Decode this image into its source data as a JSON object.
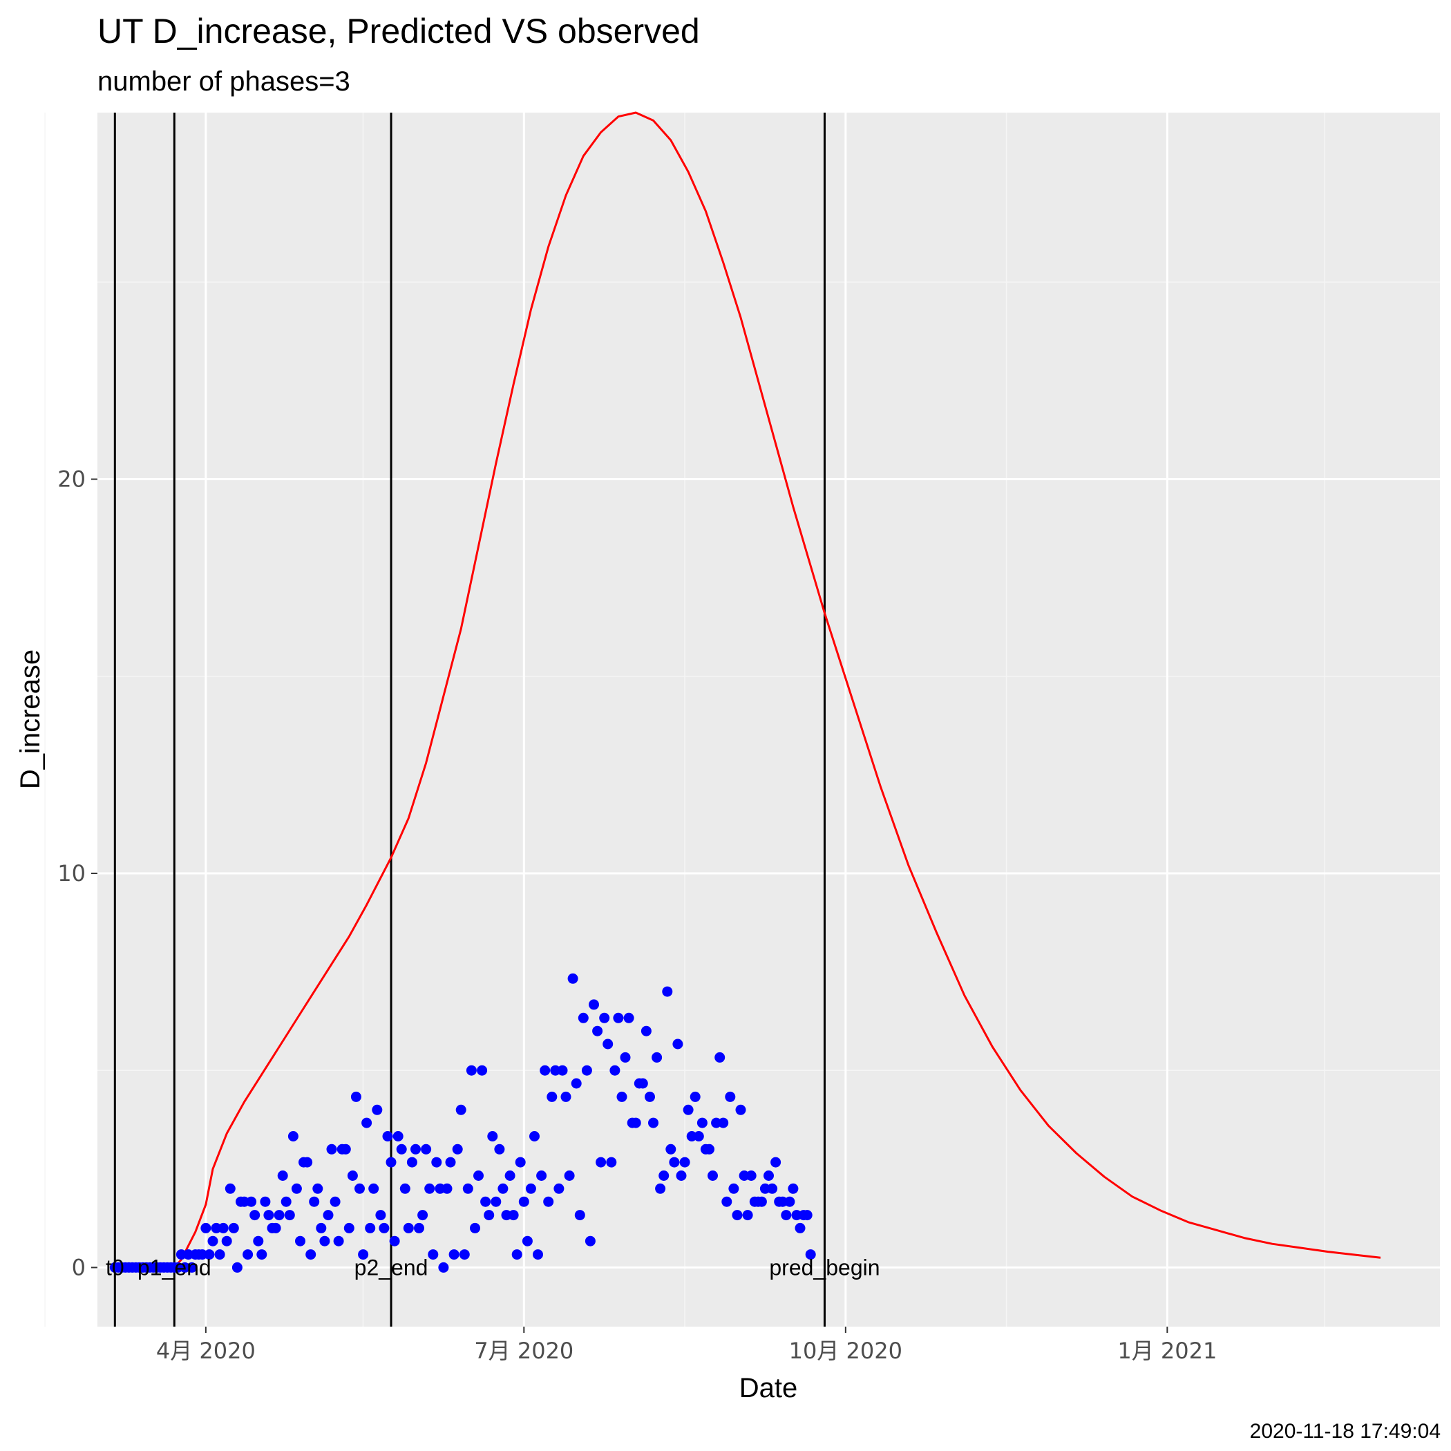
{
  "chart_data": {
    "type": "line",
    "title": "UT D_increase, Predicted VS observed",
    "subtitle": "number of phases=3",
    "xlabel": "Date",
    "ylabel": "D_increase",
    "timestamp": "2020-11-18 17:49:04",
    "xlim": [
      "2020-03-01",
      "2021-03-20"
    ],
    "ylim": [
      -1.5,
      29.3
    ],
    "grid": true,
    "x_ticks": [
      {
        "date": "2020-04-01",
        "label": "4月 2020"
      },
      {
        "date": "2020-07-01",
        "label": "7月 2020"
      },
      {
        "date": "2020-10-01",
        "label": "10月 2020"
      },
      {
        "date": "2021-01-01",
        "label": "1月 2021"
      }
    ],
    "x_minor_ticks": [
      "2020-02-15",
      "2020-05-16",
      "2020-08-16",
      "2020-11-16",
      "2021-02-15"
    ],
    "y_ticks": [
      {
        "value": 0,
        "label": "0"
      },
      {
        "value": 10,
        "label": "10"
      },
      {
        "value": 20,
        "label": "20"
      }
    ],
    "y_minor_ticks": [
      5,
      15,
      25
    ],
    "vertical_lines": [
      {
        "date": "2020-03-06",
        "label": "t0"
      },
      {
        "date": "2020-03-23",
        "label": "p1_end"
      },
      {
        "date": "2020-05-24",
        "label": "p2_end"
      },
      {
        "date": "2020-09-25",
        "label": "pred_begin"
      }
    ],
    "series": [
      {
        "kind": "line",
        "color": "#ff0000",
        "points": [
          [
            "2020-03-23",
            0
          ],
          [
            "2020-03-25",
            0.2
          ],
          [
            "2020-03-29",
            0.9
          ],
          [
            "2020-04-01",
            1.6
          ],
          [
            "2020-04-03",
            2.5
          ],
          [
            "2020-04-07",
            3.4
          ],
          [
            "2020-04-12",
            4.2
          ],
          [
            "2020-04-17",
            4.9
          ],
          [
            "2020-04-22",
            5.6
          ],
          [
            "2020-04-27",
            6.3
          ],
          [
            "2020-05-02",
            7.0
          ],
          [
            "2020-05-07",
            7.7
          ],
          [
            "2020-05-12",
            8.4
          ],
          [
            "2020-05-17",
            9.2
          ],
          [
            "2020-05-24",
            10.4
          ],
          [
            "2020-05-29",
            11.4
          ],
          [
            "2020-06-03",
            12.8
          ],
          [
            "2020-06-08",
            14.5
          ],
          [
            "2020-06-13",
            16.2
          ],
          [
            "2020-06-18",
            18.3
          ],
          [
            "2020-06-23",
            20.4
          ],
          [
            "2020-06-28",
            22.4
          ],
          [
            "2020-07-03",
            24.3
          ],
          [
            "2020-07-08",
            25.9
          ],
          [
            "2020-07-13",
            27.2
          ],
          [
            "2020-07-18",
            28.2
          ],
          [
            "2020-07-23",
            28.8
          ],
          [
            "2020-07-28",
            29.2
          ],
          [
            "2020-08-02",
            29.3
          ],
          [
            "2020-08-07",
            29.1
          ],
          [
            "2020-08-12",
            28.6
          ],
          [
            "2020-08-17",
            27.8
          ],
          [
            "2020-08-22",
            26.8
          ],
          [
            "2020-08-27",
            25.5
          ],
          [
            "2020-09-01",
            24.1
          ],
          [
            "2020-09-06",
            22.5
          ],
          [
            "2020-09-11",
            20.9
          ],
          [
            "2020-09-16",
            19.3
          ],
          [
            "2020-09-25",
            16.6
          ],
          [
            "2020-10-03",
            14.4
          ],
          [
            "2020-10-11",
            12.2
          ],
          [
            "2020-10-19",
            10.2
          ],
          [
            "2020-10-27",
            8.5
          ],
          [
            "2020-11-04",
            6.9
          ],
          [
            "2020-11-12",
            5.6
          ],
          [
            "2020-11-20",
            4.5
          ],
          [
            "2020-11-28",
            3.6
          ],
          [
            "2020-12-06",
            2.9
          ],
          [
            "2020-12-14",
            2.3
          ],
          [
            "2020-12-22",
            1.8
          ],
          [
            "2020-12-30",
            1.45
          ],
          [
            "2021-01-07",
            1.15
          ],
          [
            "2021-01-15",
            0.95
          ],
          [
            "2021-01-23",
            0.75
          ],
          [
            "2021-01-31",
            0.6
          ],
          [
            "2021-02-08",
            0.5
          ],
          [
            "2021-02-16",
            0.4
          ],
          [
            "2021-02-24",
            0.32
          ],
          [
            "2021-03-03",
            0.25
          ]
        ]
      },
      {
        "kind": "scatter",
        "color": "#0000ff",
        "points": [
          [
            "2020-03-06",
            0
          ],
          [
            "2020-03-07",
            0
          ],
          [
            "2020-03-08",
            0
          ],
          [
            "2020-03-09",
            0
          ],
          [
            "2020-03-10",
            0
          ],
          [
            "2020-03-11",
            0
          ],
          [
            "2020-03-12",
            0
          ],
          [
            "2020-03-13",
            0
          ],
          [
            "2020-03-14",
            0
          ],
          [
            "2020-03-15",
            0
          ],
          [
            "2020-03-16",
            0
          ],
          [
            "2020-03-17",
            0
          ],
          [
            "2020-03-18",
            0
          ],
          [
            "2020-03-19",
            0
          ],
          [
            "2020-03-20",
            0
          ],
          [
            "2020-03-21",
            0
          ],
          [
            "2020-03-22",
            0
          ],
          [
            "2020-03-23",
            0
          ],
          [
            "2020-03-24",
            0
          ],
          [
            "2020-03-25",
            0.33
          ],
          [
            "2020-03-26",
            0
          ],
          [
            "2020-03-27",
            0.33
          ],
          [
            "2020-03-28",
            0
          ],
          [
            "2020-03-29",
            0.33
          ],
          [
            "2020-03-30",
            0.33
          ],
          [
            "2020-03-31",
            0.33
          ],
          [
            "2020-04-01",
            1.0
          ],
          [
            "2020-04-02",
            0.33
          ],
          [
            "2020-04-03",
            0.67
          ],
          [
            "2020-04-04",
            1.0
          ],
          [
            "2020-04-05",
            0.33
          ],
          [
            "2020-04-06",
            1.0
          ],
          [
            "2020-04-07",
            0.67
          ],
          [
            "2020-04-08",
            2.0
          ],
          [
            "2020-04-09",
            1.0
          ],
          [
            "2020-04-10",
            0
          ],
          [
            "2020-04-11",
            1.67
          ],
          [
            "2020-04-12",
            1.67
          ],
          [
            "2020-04-13",
            0.33
          ],
          [
            "2020-04-14",
            1.67
          ],
          [
            "2020-04-15",
            1.33
          ],
          [
            "2020-04-16",
            0.67
          ],
          [
            "2020-04-17",
            0.33
          ],
          [
            "2020-04-18",
            1.67
          ],
          [
            "2020-04-19",
            1.33
          ],
          [
            "2020-04-20",
            1.0
          ],
          [
            "2020-04-21",
            1.0
          ],
          [
            "2020-04-22",
            1.33
          ],
          [
            "2020-04-23",
            2.33
          ],
          [
            "2020-04-24",
            1.67
          ],
          [
            "2020-04-25",
            1.33
          ],
          [
            "2020-04-26",
            3.33
          ],
          [
            "2020-04-27",
            2.0
          ],
          [
            "2020-04-28",
            0.67
          ],
          [
            "2020-04-29",
            2.67
          ],
          [
            "2020-04-30",
            2.67
          ],
          [
            "2020-05-01",
            0.33
          ],
          [
            "2020-05-02",
            1.67
          ],
          [
            "2020-05-03",
            2.0
          ],
          [
            "2020-05-04",
            1.0
          ],
          [
            "2020-05-05",
            0.67
          ],
          [
            "2020-05-06",
            1.33
          ],
          [
            "2020-05-07",
            3.0
          ],
          [
            "2020-05-08",
            1.67
          ],
          [
            "2020-05-09",
            0.67
          ],
          [
            "2020-05-10",
            3.0
          ],
          [
            "2020-05-11",
            3.0
          ],
          [
            "2020-05-12",
            1.0
          ],
          [
            "2020-05-13",
            2.33
          ],
          [
            "2020-05-14",
            4.33
          ],
          [
            "2020-05-15",
            2.0
          ],
          [
            "2020-05-16",
            0.33
          ],
          [
            "2020-05-17",
            3.67
          ],
          [
            "2020-05-18",
            1.0
          ],
          [
            "2020-05-19",
            2.0
          ],
          [
            "2020-05-20",
            4.0
          ],
          [
            "2020-05-21",
            1.33
          ],
          [
            "2020-05-22",
            1.0
          ],
          [
            "2020-05-23",
            3.33
          ],
          [
            "2020-05-24",
            2.67
          ],
          [
            "2020-05-25",
            0.67
          ],
          [
            "2020-05-26",
            3.33
          ],
          [
            "2020-05-27",
            3.0
          ],
          [
            "2020-05-28",
            2.0
          ],
          [
            "2020-05-29",
            1.0
          ],
          [
            "2020-05-30",
            2.67
          ],
          [
            "2020-05-31",
            3.0
          ],
          [
            "2020-06-01",
            1.0
          ],
          [
            "2020-06-02",
            1.33
          ],
          [
            "2020-06-03",
            3.0
          ],
          [
            "2020-06-04",
            2.0
          ],
          [
            "2020-06-05",
            0.33
          ],
          [
            "2020-06-06",
            2.67
          ],
          [
            "2020-06-07",
            2.0
          ],
          [
            "2020-06-08",
            0
          ],
          [
            "2020-06-09",
            2.0
          ],
          [
            "2020-06-10",
            2.67
          ],
          [
            "2020-06-11",
            0.33
          ],
          [
            "2020-06-12",
            3.0
          ],
          [
            "2020-06-13",
            4.0
          ],
          [
            "2020-06-14",
            0.33
          ],
          [
            "2020-06-15",
            2.0
          ],
          [
            "2020-06-16",
            5.0
          ],
          [
            "2020-06-17",
            1.0
          ],
          [
            "2020-06-18",
            2.33
          ],
          [
            "2020-06-19",
            5.0
          ],
          [
            "2020-06-20",
            1.67
          ],
          [
            "2020-06-21",
            1.33
          ],
          [
            "2020-06-22",
            3.33
          ],
          [
            "2020-06-23",
            1.67
          ],
          [
            "2020-06-24",
            3.0
          ],
          [
            "2020-06-25",
            2.0
          ],
          [
            "2020-06-26",
            1.33
          ],
          [
            "2020-06-27",
            2.33
          ],
          [
            "2020-06-28",
            1.33
          ],
          [
            "2020-06-29",
            0.33
          ],
          [
            "2020-06-30",
            2.67
          ],
          [
            "2020-07-01",
            1.67
          ],
          [
            "2020-07-02",
            0.67
          ],
          [
            "2020-07-03",
            2.0
          ],
          [
            "2020-07-04",
            3.33
          ],
          [
            "2020-07-05",
            0.33
          ],
          [
            "2020-07-06",
            2.33
          ],
          [
            "2020-07-07",
            5.0
          ],
          [
            "2020-07-08",
            1.67
          ],
          [
            "2020-07-09",
            4.33
          ],
          [
            "2020-07-10",
            5.0
          ],
          [
            "2020-07-11",
            2.0
          ],
          [
            "2020-07-12",
            5.0
          ],
          [
            "2020-07-13",
            4.33
          ],
          [
            "2020-07-14",
            2.33
          ],
          [
            "2020-07-15",
            7.33
          ],
          [
            "2020-07-16",
            4.67
          ],
          [
            "2020-07-17",
            1.33
          ],
          [
            "2020-07-18",
            6.33
          ],
          [
            "2020-07-19",
            5.0
          ],
          [
            "2020-07-20",
            0.67
          ],
          [
            "2020-07-21",
            6.67
          ],
          [
            "2020-07-22",
            6.0
          ],
          [
            "2020-07-23",
            2.67
          ],
          [
            "2020-07-24",
            6.33
          ],
          [
            "2020-07-25",
            5.67
          ],
          [
            "2020-07-26",
            2.67
          ],
          [
            "2020-07-27",
            5.0
          ],
          [
            "2020-07-28",
            6.33
          ],
          [
            "2020-07-29",
            4.33
          ],
          [
            "2020-07-30",
            5.33
          ],
          [
            "2020-07-31",
            6.33
          ],
          [
            "2020-08-01",
            3.67
          ],
          [
            "2020-08-02",
            3.67
          ],
          [
            "2020-08-03",
            4.67
          ],
          [
            "2020-08-04",
            4.67
          ],
          [
            "2020-08-05",
            6.0
          ],
          [
            "2020-08-06",
            4.33
          ],
          [
            "2020-08-07",
            3.67
          ],
          [
            "2020-08-08",
            5.33
          ],
          [
            "2020-08-09",
            2.0
          ],
          [
            "2020-08-10",
            2.33
          ],
          [
            "2020-08-11",
            7.0
          ],
          [
            "2020-08-12",
            3.0
          ],
          [
            "2020-08-13",
            2.67
          ],
          [
            "2020-08-14",
            5.67
          ],
          [
            "2020-08-15",
            2.33
          ],
          [
            "2020-08-16",
            2.67
          ],
          [
            "2020-08-17",
            4.0
          ],
          [
            "2020-08-18",
            3.33
          ],
          [
            "2020-08-19",
            4.33
          ],
          [
            "2020-08-20",
            3.33
          ],
          [
            "2020-08-21",
            3.67
          ],
          [
            "2020-08-22",
            3.0
          ],
          [
            "2020-08-23",
            3.0
          ],
          [
            "2020-08-24",
            2.33
          ],
          [
            "2020-08-25",
            3.67
          ],
          [
            "2020-08-26",
            5.33
          ],
          [
            "2020-08-27",
            3.67
          ],
          [
            "2020-08-28",
            1.67
          ],
          [
            "2020-08-29",
            4.33
          ],
          [
            "2020-08-30",
            2.0
          ],
          [
            "2020-08-31",
            1.33
          ],
          [
            "2020-09-01",
            4.0
          ],
          [
            "2020-09-02",
            2.33
          ],
          [
            "2020-09-03",
            1.33
          ],
          [
            "2020-09-04",
            2.33
          ],
          [
            "2020-09-05",
            1.67
          ],
          [
            "2020-09-06",
            1.67
          ],
          [
            "2020-09-07",
            1.67
          ],
          [
            "2020-09-08",
            2.0
          ],
          [
            "2020-09-09",
            2.33
          ],
          [
            "2020-09-10",
            2.0
          ],
          [
            "2020-09-11",
            2.67
          ],
          [
            "2020-09-12",
            1.67
          ],
          [
            "2020-09-13",
            1.67
          ],
          [
            "2020-09-14",
            1.33
          ],
          [
            "2020-09-15",
            1.67
          ],
          [
            "2020-09-16",
            2.0
          ],
          [
            "2020-09-17",
            1.33
          ],
          [
            "2020-09-18",
            1.0
          ],
          [
            "2020-09-19",
            1.33
          ],
          [
            "2020-09-20",
            1.33
          ],
          [
            "2020-09-21",
            0.33
          ]
        ]
      }
    ]
  }
}
